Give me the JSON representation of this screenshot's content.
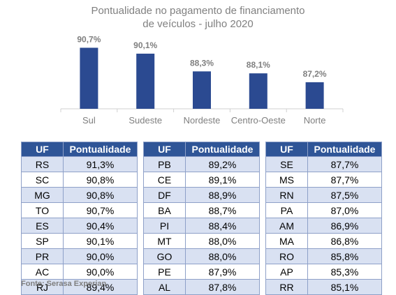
{
  "chart_data": {
    "type": "bar",
    "title_lines": [
      "Pontualidade no pagamento de financiamento",
      "de veículos - julho 2020"
    ],
    "categories": [
      "Sul",
      "Sudeste",
      "Nordeste",
      "Centro-Oeste",
      "Norte"
    ],
    "values": [
      90.7,
      90.1,
      88.3,
      88.1,
      87.2
    ],
    "value_labels": [
      "90,7%",
      "90,1%",
      "88,3%",
      "88,1%",
      "87,2%"
    ],
    "xlabel": "",
    "ylabel": "",
    "ylim": [
      84.5,
      91.3
    ],
    "grid": false,
    "colors": {
      "bar": "#2b4a91"
    }
  },
  "tables": {
    "header": {
      "uf": "UF",
      "value": "Pontualidade"
    },
    "header_color": "#2f5597",
    "stripe_color": "#d9e1f2",
    "columns": [
      [
        {
          "uf": "RS",
          "value": "91,3%"
        },
        {
          "uf": "SC",
          "value": "90,8%"
        },
        {
          "uf": "MG",
          "value": "90,8%"
        },
        {
          "uf": "TO",
          "value": "90,7%"
        },
        {
          "uf": "ES",
          "value": "90,4%"
        },
        {
          "uf": "SP",
          "value": "90,1%"
        },
        {
          "uf": "PR",
          "value": "90,0%"
        },
        {
          "uf": "AC",
          "value": "90,0%"
        },
        {
          "uf": "RJ",
          "value": "89,4%"
        }
      ],
      [
        {
          "uf": "PB",
          "value": "89,2%"
        },
        {
          "uf": "CE",
          "value": "89,1%"
        },
        {
          "uf": "DF",
          "value": "88,9%"
        },
        {
          "uf": "BA",
          "value": "88,7%"
        },
        {
          "uf": "PI",
          "value": "88,4%"
        },
        {
          "uf": "MT",
          "value": "88,0%"
        },
        {
          "uf": "GO",
          "value": "88,0%"
        },
        {
          "uf": "PE",
          "value": "87,9%"
        },
        {
          "uf": "AL",
          "value": "87,8%"
        }
      ],
      [
        {
          "uf": "SE",
          "value": "87,7%"
        },
        {
          "uf": "MS",
          "value": "87,7%"
        },
        {
          "uf": "RN",
          "value": "87,5%"
        },
        {
          "uf": "PA",
          "value": "87,0%"
        },
        {
          "uf": "AM",
          "value": "86,9%"
        },
        {
          "uf": "MA",
          "value": "86,8%"
        },
        {
          "uf": "RO",
          "value": "85,8%"
        },
        {
          "uf": "AP",
          "value": "85,3%"
        },
        {
          "uf": "RR",
          "value": "85,1%"
        }
      ]
    ]
  },
  "source": "Fonte: Serasa Experian"
}
